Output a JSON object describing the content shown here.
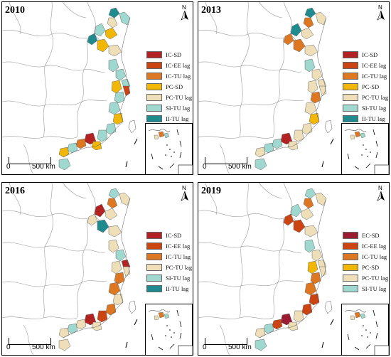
{
  "panels": [
    {
      "year": "2010",
      "legend": [
        {
          "label": "IC-SD",
          "color": "#b22222"
        },
        {
          "label": "IC-EE lag",
          "color": "#cc4411"
        },
        {
          "label": "IC-TU lag",
          "color": "#dd7722"
        },
        {
          "label": "PC-SD",
          "color": "#f2b705"
        },
        {
          "label": "PC-TU lag",
          "color": "#eedfb8"
        },
        {
          "label": "SI-TU lag",
          "color": "#9ed8cf"
        },
        {
          "label": "II-TU lag",
          "color": "#1f8b8f"
        }
      ],
      "scale": {
        "zero": "0",
        "distance": "500 km"
      },
      "north_label": "N"
    },
    {
      "year": "2013",
      "legend": [
        {
          "label": "IC-SD",
          "color": "#b22222"
        },
        {
          "label": "IC-EE lag",
          "color": "#cc4411"
        },
        {
          "label": "IC-TU lag",
          "color": "#dd7722"
        },
        {
          "label": "PC-SD",
          "color": "#f2b705"
        },
        {
          "label": "PC-TU lag",
          "color": "#eedfb8"
        },
        {
          "label": "SI-TU lag",
          "color": "#9ed8cf"
        },
        {
          "label": "II-TU lag",
          "color": "#1f8b8f"
        }
      ],
      "scale": {
        "zero": "0",
        "distance": "500 km"
      },
      "north_label": "N"
    },
    {
      "year": "2016",
      "legend": [
        {
          "label": "IC-SD",
          "color": "#b22222"
        },
        {
          "label": "IC-EE lag",
          "color": "#cc4411"
        },
        {
          "label": "IC-TU lag",
          "color": "#dd7722"
        },
        {
          "label": "PC-TU lag",
          "color": "#eedfb8"
        },
        {
          "label": "SI-TU lag",
          "color": "#9ed8cf"
        },
        {
          "label": "II-TU lag",
          "color": "#1f8b8f"
        }
      ],
      "scale": {
        "zero": "0",
        "distance": "500 km"
      },
      "north_label": "N"
    },
    {
      "year": "2019",
      "legend": [
        {
          "label": "EC-SD",
          "color": "#9b1b30"
        },
        {
          "label": "IC-EE lag",
          "color": "#cc4411"
        },
        {
          "label": "IC-TU lag",
          "color": "#dd7722"
        },
        {
          "label": "PC-SD",
          "color": "#f2b705"
        },
        {
          "label": "PC-TU lag",
          "color": "#eedfb8"
        },
        {
          "label": "SI-TU lag",
          "color": "#9ed8cf"
        }
      ],
      "scale": {
        "zero": "0",
        "distance": "500 km"
      },
      "north_label": "N"
    }
  ],
  "region_colors": [
    [
      "#1f8b8f",
      "#9ed8cf",
      "#eedfb8",
      "#9ed8cf",
      "#f2b705",
      "#1f8b8f",
      "#f2b705",
      "#eedfb8",
      "#9ed8cf",
      "#9ed8cf",
      "#f2b705",
      "#9ed8cf",
      "#9ed8cf",
      "#cc4411",
      "#9ed8cf",
      "#f2b705",
      "#9ed8cf",
      "#9ed8cf",
      "#b22222",
      "#dd7722",
      "#f2b705",
      "#9ed8cf",
      "#f2b705",
      "#9ed8cf"
    ],
    [
      "#1f8b8f",
      "#eedfb8",
      "#dd7722",
      "#1f8b8f",
      "#eedfb8",
      "#dd7722",
      "#dd7722",
      "#eedfb8",
      "#9ed8cf",
      "#eedfb8",
      "#eedfb8",
      "#eedfb8",
      "#dd7722",
      "#eedfb8",
      "#eedfb8",
      "#f2b705",
      "#eedfb8",
      "#eedfb8",
      "#b22222",
      "#9ed8cf",
      "#eedfb8",
      "#9ed8cf",
      "#eedfb8",
      "#9ed8cf"
    ],
    [
      "#9ed8cf",
      "#eedfb8",
      "#dd7722",
      "#b22222",
      "#eedfb8",
      "#eedfb8",
      "#1f8b8f",
      "#eedfb8",
      "#eedfb8",
      "#9ed8cf",
      "#eedfb8",
      "#b22222",
      "#dd7722",
      "#eedfb8",
      "#dd7722",
      "#eedfb8",
      "#dd7722",
      "#cc4411",
      "#b22222",
      "#eedfb8",
      "#eedfb8",
      "#9ed8cf",
      "#eedfb8",
      "#eedfb8"
    ],
    [
      "#9ed8cf",
      "#eedfb8",
      "#dd7722",
      "#9ed8cf",
      "#eedfb8",
      "#cc4411",
      "#cc4411",
      "#eedfb8",
      "#9ed8cf",
      "#eedfb8",
      "#f2b705",
      "#eedfb8",
      "#dd7722",
      "#eedfb8",
      "#dd7722",
      "#cc4411",
      "#cc4411",
      "#eedfb8",
      "#9b1b30",
      "#cc4411",
      "#eedfb8",
      "#9ed8cf",
      "#eedfb8",
      "#9ed8cf"
    ]
  ]
}
